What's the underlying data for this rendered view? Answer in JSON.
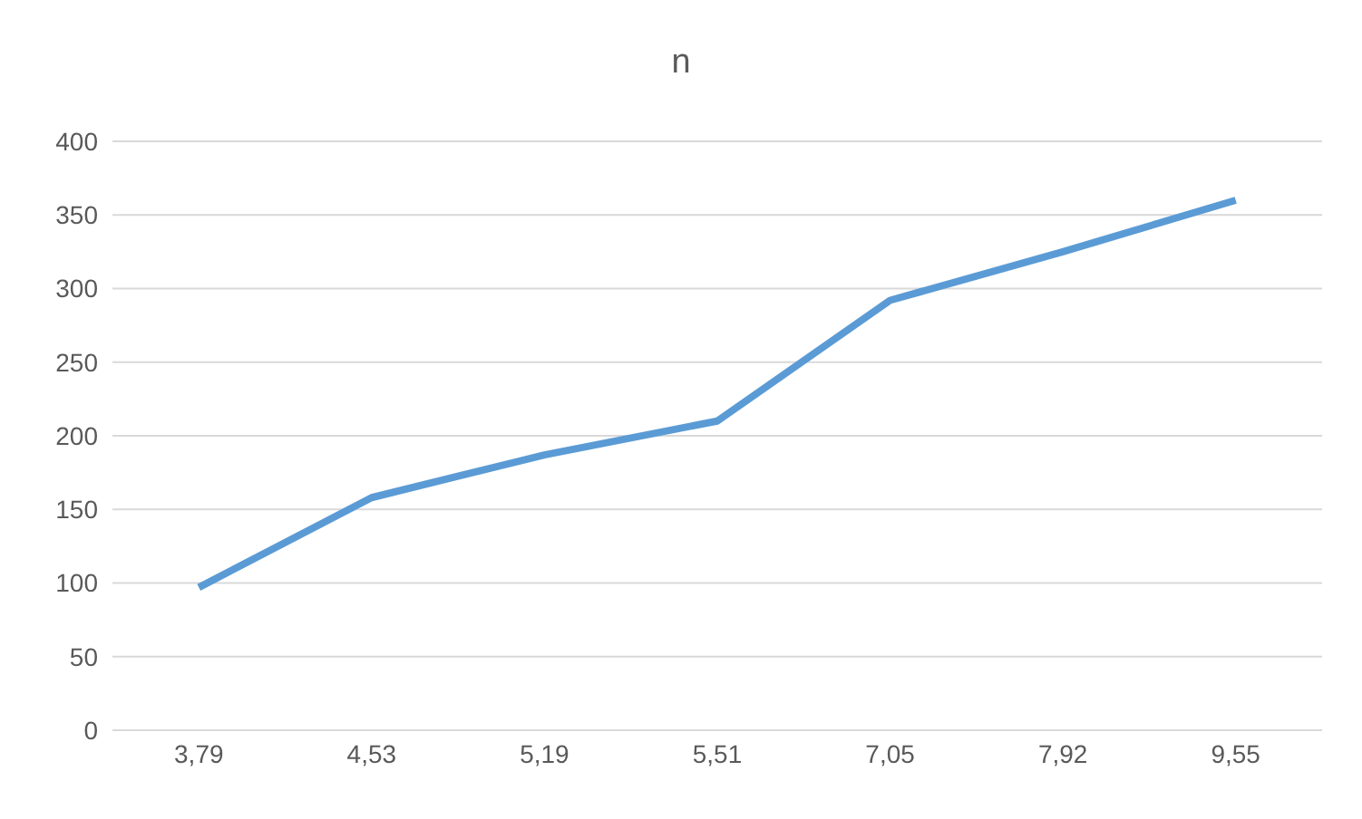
{
  "chart_data": {
    "type": "line",
    "title": "n",
    "categories": [
      "3,79",
      "4,53",
      "5,19",
      "5,51",
      "7,05",
      "7,92",
      "9,55"
    ],
    "series": [
      {
        "color": "#5b9bd5",
        "values": [
          97,
          158,
          187,
          210,
          292,
          325,
          360
        ]
      }
    ],
    "ylim": [
      0,
      400
    ],
    "yticks": [
      0,
      50,
      100,
      150,
      200,
      250,
      300,
      350,
      400
    ],
    "grid": "y",
    "legend": false,
    "marker": "none",
    "line_style": "solid"
  }
}
